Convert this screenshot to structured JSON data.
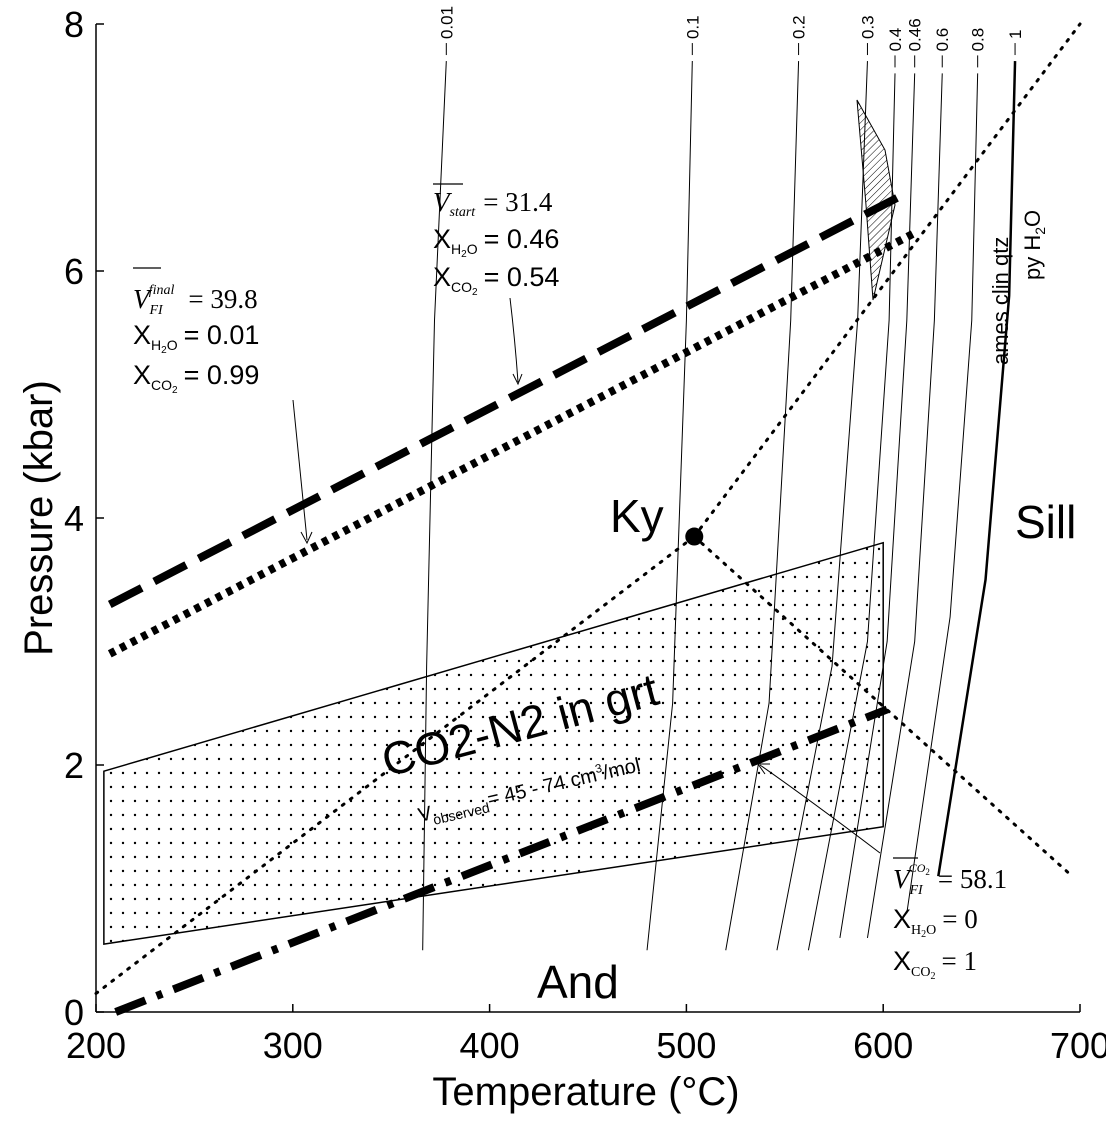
{
  "chart_data": {
    "type": "line",
    "xlabel": "Temperature (°C)",
    "ylabel": "Pressure (kbar)",
    "xlim": [
      200,
      700
    ],
    "ylim": [
      0,
      8
    ],
    "x_ticks": [
      "200",
      "300",
      "400",
      "500",
      "600",
      "700"
    ],
    "y_ticks": [
      "0",
      "2",
      "4",
      "6",
      "8"
    ],
    "grid": false,
    "isopleths": [
      {
        "label": "0.01",
        "points": [
          [
            366,
            0.5
          ],
          [
            368,
            2.8
          ],
          [
            372,
            5.6
          ],
          [
            378,
            7.7
          ]
        ]
      },
      {
        "label": "0.1",
        "points": [
          [
            480,
            0.5
          ],
          [
            493,
            2.5
          ],
          [
            500,
            5.6
          ],
          [
            503,
            7.7
          ]
        ]
      },
      {
        "label": "0.2",
        "points": [
          [
            520,
            0.5
          ],
          [
            542,
            2.5
          ],
          [
            553,
            5.6
          ],
          [
            557,
            7.7
          ]
        ]
      },
      {
        "label": "0.3",
        "points": [
          [
            546,
            0.5
          ],
          [
            574,
            2.8
          ],
          [
            587,
            5.6
          ],
          [
            592,
            7.7
          ]
        ]
      },
      {
        "label": "0.4",
        "points": [
          [
            562,
            0.5
          ],
          [
            592,
            3.0
          ],
          [
            603,
            5.6
          ],
          [
            606,
            7.6
          ]
        ]
      },
      {
        "label": "0.46",
        "points": [
          [
            578,
            0.6
          ],
          [
            602,
            3.0
          ],
          [
            612,
            5.6
          ],
          [
            616,
            7.6
          ]
        ]
      },
      {
        "label": "0.6",
        "points": [
          [
            592,
            0.6
          ],
          [
            616,
            3.0
          ],
          [
            626,
            5.6
          ],
          [
            630,
            7.6
          ]
        ]
      },
      {
        "label": "0.8",
        "points": [
          [
            612,
            0.8
          ],
          [
            634,
            3.2
          ],
          [
            645,
            5.6
          ],
          [
            648,
            7.6
          ]
        ]
      },
      {
        "label": "1",
        "points": [
          [
            628,
            1.1
          ],
          [
            652,
            3.5
          ],
          [
            664,
            5.8
          ],
          [
            667,
            7.7
          ]
        ]
      }
    ],
    "isochores": [
      {
        "name": "V start = 31.4, X H2O = 0.46, X CO2 = 0.54",
        "style": "dashed",
        "points": [
          [
            207,
            3.3
          ],
          [
            608,
            6.6
          ]
        ]
      },
      {
        "name": "V FI final = 39.8, X H2O = 0.01, X CO2 = 0.99",
        "style": "dotted",
        "points": [
          [
            207,
            2.9
          ],
          [
            615,
            6.3
          ]
        ]
      },
      {
        "name": "V FI CO2 = 58.1, X H2O = 0, X CO2 = 1",
        "style": "dash-dot",
        "points": [
          [
            210,
            0
          ],
          [
            602,
            2.45
          ]
        ]
      }
    ],
    "aluminosilicate": {
      "triple_point": [
        504,
        3.85
      ],
      "ky_and": [
        [
          200,
          0.15
        ],
        [
          504,
          3.85
        ]
      ],
      "ky_sill": [
        [
          504,
          3.85
        ],
        [
          700,
          8.0
        ]
      ],
      "and_sill": [
        [
          504,
          3.85
        ],
        [
          696,
          1.1
        ]
      ]
    },
    "co2_n2_field": [
      [
        204,
        1.95
      ],
      [
        600,
        3.8
      ],
      [
        600,
        1.5
      ],
      [
        204,
        0.55
      ]
    ],
    "labels": {
      "ky": "Ky",
      "sill": "Sill",
      "and": "And",
      "field": "CO2-N2 in grt",
      "v_observed_v": "V",
      "v_observed_sub": "observed",
      "v_observed_val": "= 45 - 74 cm",
      "v_observed_sup": "3",
      "v_observed_unit": "/mol",
      "ames1": "ames clin qtz",
      "ames2": "py H",
      "ames2_sub": "2",
      "ames2_end": "O"
    },
    "annotations": {
      "start": {
        "v": "V",
        "vsub": "start",
        "val": "=  31.4",
        "xh2o": "=  0.46",
        "xco2": "=  0.54"
      },
      "final": {
        "v": "V",
        "vsub": "FI",
        "vsup": "final",
        "val": "=  39.8",
        "xh2o": "=  0.01",
        "xco2": "=  0.99"
      },
      "co2": {
        "v": "V",
        "vsub": "FI",
        "vsup": "CO",
        "vsup2": "2",
        "val": "= 58.1",
        "xh2o": "= 0",
        "xco2": "= 1"
      },
      "x": "X",
      "h2o_h": "H",
      "h2o_2": "2",
      "h2o_o": "O",
      "co2_c": "CO",
      "co2_2": "2"
    }
  }
}
